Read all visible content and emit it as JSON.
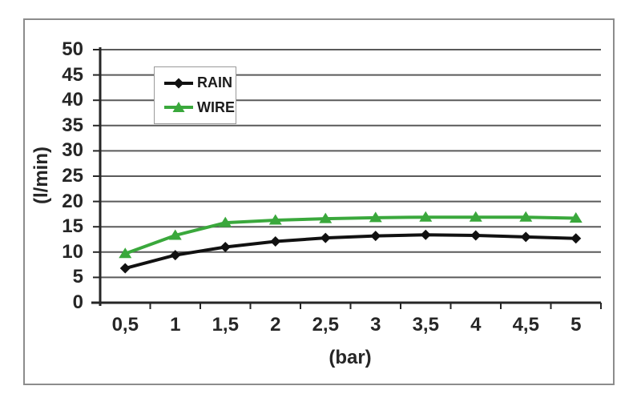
{
  "colors": {
    "background": "#ffffff",
    "frame_border": "#8c8c8c",
    "grid": "#5a5a5a",
    "axis": "#262626",
    "text": "#262626"
  },
  "chart_data": {
    "type": "line",
    "x": [
      0.5,
      1,
      1.5,
      2,
      2.5,
      3,
      3.5,
      4,
      4.5,
      5
    ],
    "x_tick_labels": [
      "0,5",
      "1",
      "1,5",
      "2",
      "2,5",
      "3",
      "3,5",
      "4",
      "4,5",
      "5"
    ],
    "y_tick_labels": [
      "0",
      "5",
      "10",
      "15",
      "20",
      "25",
      "30",
      "35",
      "40",
      "45",
      "50"
    ],
    "series": [
      {
        "name": "RAIN",
        "color": "#111111",
        "marker": "diamond",
        "values": [
          6.8,
          9.4,
          11.0,
          12.1,
          12.8,
          13.2,
          13.4,
          13.3,
          13.0,
          12.7
        ]
      },
      {
        "name": "WIRE",
        "color": "#3aa83c",
        "marker": "triangle",
        "values": [
          9.7,
          13.3,
          15.8,
          16.3,
          16.6,
          16.8,
          16.9,
          16.9,
          16.9,
          16.7
        ]
      }
    ],
    "title": "",
    "xlabel": "(bar)",
    "ylabel": "(l/min)",
    "xlim": [
      0,
      5.5
    ],
    "ylim": [
      0,
      50
    ],
    "ytick_step": 5,
    "grid": "horizontal",
    "legend_position": "upper-left-inside"
  }
}
